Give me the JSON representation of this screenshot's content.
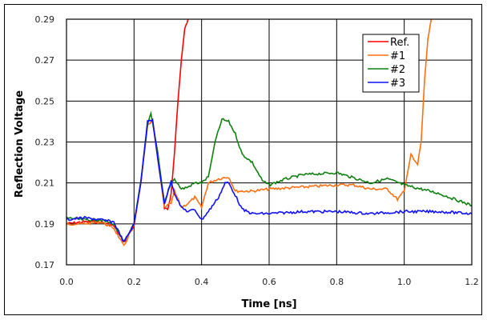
{
  "chart_data": {
    "type": "line",
    "title": "",
    "xlabel": "Time [ns]",
    "ylabel": "Reflection Voltage",
    "xlim": [
      0.0,
      1.2
    ],
    "ylim": [
      0.17,
      0.29
    ],
    "xticks": [
      "0.0",
      "0.2",
      "0.4",
      "0.6",
      "0.8",
      "1.0",
      "1.2"
    ],
    "yticks": [
      "0.29",
      "0.27",
      "0.25",
      "0.23",
      "0.21",
      "0.19",
      "0.17"
    ],
    "grid": true,
    "legend_position": "upper right (inside)",
    "series": [
      {
        "name": "Ref.",
        "color": "#ff0000",
        "x": [
          0.0,
          0.05,
          0.1,
          0.14,
          0.17,
          0.2,
          0.22,
          0.24,
          0.255,
          0.27,
          0.29,
          0.3,
          0.31,
          0.32,
          0.33,
          0.34,
          0.35,
          0.36
        ],
        "y": [
          0.19,
          0.191,
          0.191,
          0.189,
          0.181,
          0.189,
          0.21,
          0.238,
          0.24,
          0.225,
          0.198,
          0.197,
          0.205,
          0.225,
          0.25,
          0.27,
          0.285,
          0.29
        ]
      },
      {
        "name": "#1",
        "color": "#ff7010",
        "x": [
          0.0,
          0.05,
          0.1,
          0.14,
          0.17,
          0.2,
          0.22,
          0.24,
          0.255,
          0.27,
          0.29,
          0.31,
          0.32,
          0.34,
          0.36,
          0.38,
          0.4,
          0.42,
          0.45,
          0.48,
          0.5,
          0.55,
          0.6,
          0.7,
          0.8,
          0.85,
          0.9,
          0.95,
          0.98,
          1.0,
          1.02,
          1.04,
          1.05,
          1.06,
          1.07,
          1.08
        ],
        "y": [
          0.19,
          0.19,
          0.191,
          0.188,
          0.179,
          0.19,
          0.21,
          0.238,
          0.24,
          0.222,
          0.198,
          0.2,
          0.206,
          0.198,
          0.2,
          0.203,
          0.198,
          0.21,
          0.212,
          0.213,
          0.206,
          0.206,
          0.207,
          0.208,
          0.209,
          0.209,
          0.207,
          0.207,
          0.202,
          0.206,
          0.224,
          0.219,
          0.23,
          0.26,
          0.28,
          0.29
        ]
      },
      {
        "name": "#2",
        "color": "#108010",
        "x": [
          0.0,
          0.05,
          0.1,
          0.14,
          0.17,
          0.2,
          0.22,
          0.24,
          0.25,
          0.27,
          0.29,
          0.31,
          0.32,
          0.34,
          0.36,
          0.38,
          0.4,
          0.42,
          0.44,
          0.46,
          0.48,
          0.5,
          0.52,
          0.55,
          0.58,
          0.6,
          0.65,
          0.7,
          0.8,
          0.9,
          0.95,
          1.0,
          1.05,
          1.1,
          1.15,
          1.2
        ],
        "y": [
          0.193,
          0.192,
          0.192,
          0.19,
          0.181,
          0.19,
          0.211,
          0.238,
          0.244,
          0.225,
          0.2,
          0.21,
          0.212,
          0.207,
          0.208,
          0.21,
          0.21,
          0.213,
          0.23,
          0.241,
          0.24,
          0.234,
          0.224,
          0.22,
          0.211,
          0.209,
          0.212,
          0.214,
          0.215,
          0.21,
          0.212,
          0.209,
          0.207,
          0.205,
          0.202,
          0.199
        ]
      },
      {
        "name": "#3",
        "color": "#1010ff",
        "x": [
          0.0,
          0.05,
          0.1,
          0.14,
          0.17,
          0.2,
          0.22,
          0.24,
          0.255,
          0.27,
          0.29,
          0.31,
          0.32,
          0.34,
          0.36,
          0.38,
          0.4,
          0.42,
          0.45,
          0.47,
          0.48,
          0.5,
          0.52,
          0.55,
          0.6,
          0.7,
          0.8,
          0.9,
          1.0,
          1.1,
          1.2
        ],
        "y": [
          0.192,
          0.193,
          0.192,
          0.191,
          0.181,
          0.19,
          0.21,
          0.24,
          0.241,
          0.222,
          0.2,
          0.211,
          0.205,
          0.198,
          0.196,
          0.197,
          0.192,
          0.196,
          0.203,
          0.21,
          0.21,
          0.204,
          0.197,
          0.195,
          0.195,
          0.196,
          0.196,
          0.195,
          0.196,
          0.196,
          0.195
        ]
      }
    ]
  }
}
